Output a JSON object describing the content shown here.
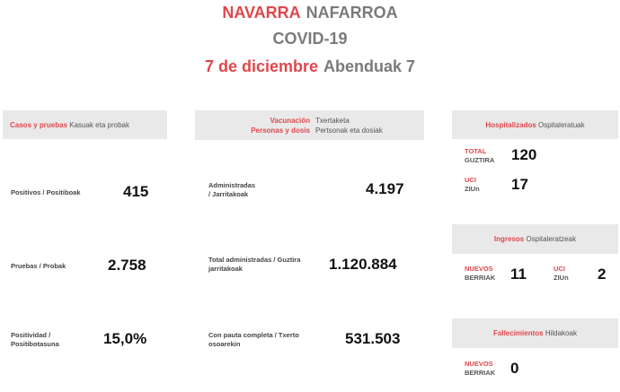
{
  "title": {
    "region_es": "NAVARRA",
    "region_eu": "NAFARROA",
    "subtitle": "COVID-19",
    "date_es": "7 de diciembre",
    "date_eu": "Abenduak 7"
  },
  "cases": {
    "header_es": "Casos y pruebas",
    "header_eu": "Kasuak eta probak",
    "rows": [
      {
        "label": "Positivos / Positiboak",
        "value": "415"
      },
      {
        "label": "Pruebas / Probak",
        "value": "2.758"
      },
      {
        "label_line1": "Positividad /",
        "label_line2": "Positibotasuna",
        "value": "15,0%"
      }
    ]
  },
  "vaccination": {
    "header_es_1": "Vacunación",
    "header_eu_1": "Txertaketa",
    "header_es_2": "Personas y dosis",
    "header_eu_2": "Pertsonak eta dosiak",
    "rows": [
      {
        "label_line1": "Administradas",
        "label_line2": "/ Jarritakoak",
        "value": "4.197"
      },
      {
        "label_line1": "Total administradas / Guztira",
        "label_line2": "jarritakoak",
        "value": "1.120.884"
      },
      {
        "label_line1": "Con pauta completa / Txerto",
        "label_line2": "osoarekin",
        "value": "531.503"
      }
    ]
  },
  "hospital": {
    "header_es": "Hospitalizados",
    "header_eu": "Ospitaleratuak",
    "total_es": "TOTAL",
    "total_eu": "GUZTIRA",
    "total_value": "120",
    "uci_es": "UCI",
    "uci_eu": "ZIUn",
    "uci_value": "17"
  },
  "admissions": {
    "header_es": "Ingresos",
    "header_eu": "Ospitaleratzeak",
    "new_es": "NUEVOS",
    "new_eu": "BERRIAK",
    "new_value": "11",
    "uci_es": "UCI",
    "uci_eu": "ZIUn",
    "uci_value": "2"
  },
  "deaths": {
    "header_es": "Fallecimientos",
    "header_eu": "Hildakoak",
    "new_es": "NUEVOS",
    "new_eu": "BERRIAK",
    "new_value": "0"
  },
  "colors": {
    "accent_red": "#e0474c",
    "header_bg": "#e9e9e9",
    "secondary_gray": "#7a7a7a"
  }
}
